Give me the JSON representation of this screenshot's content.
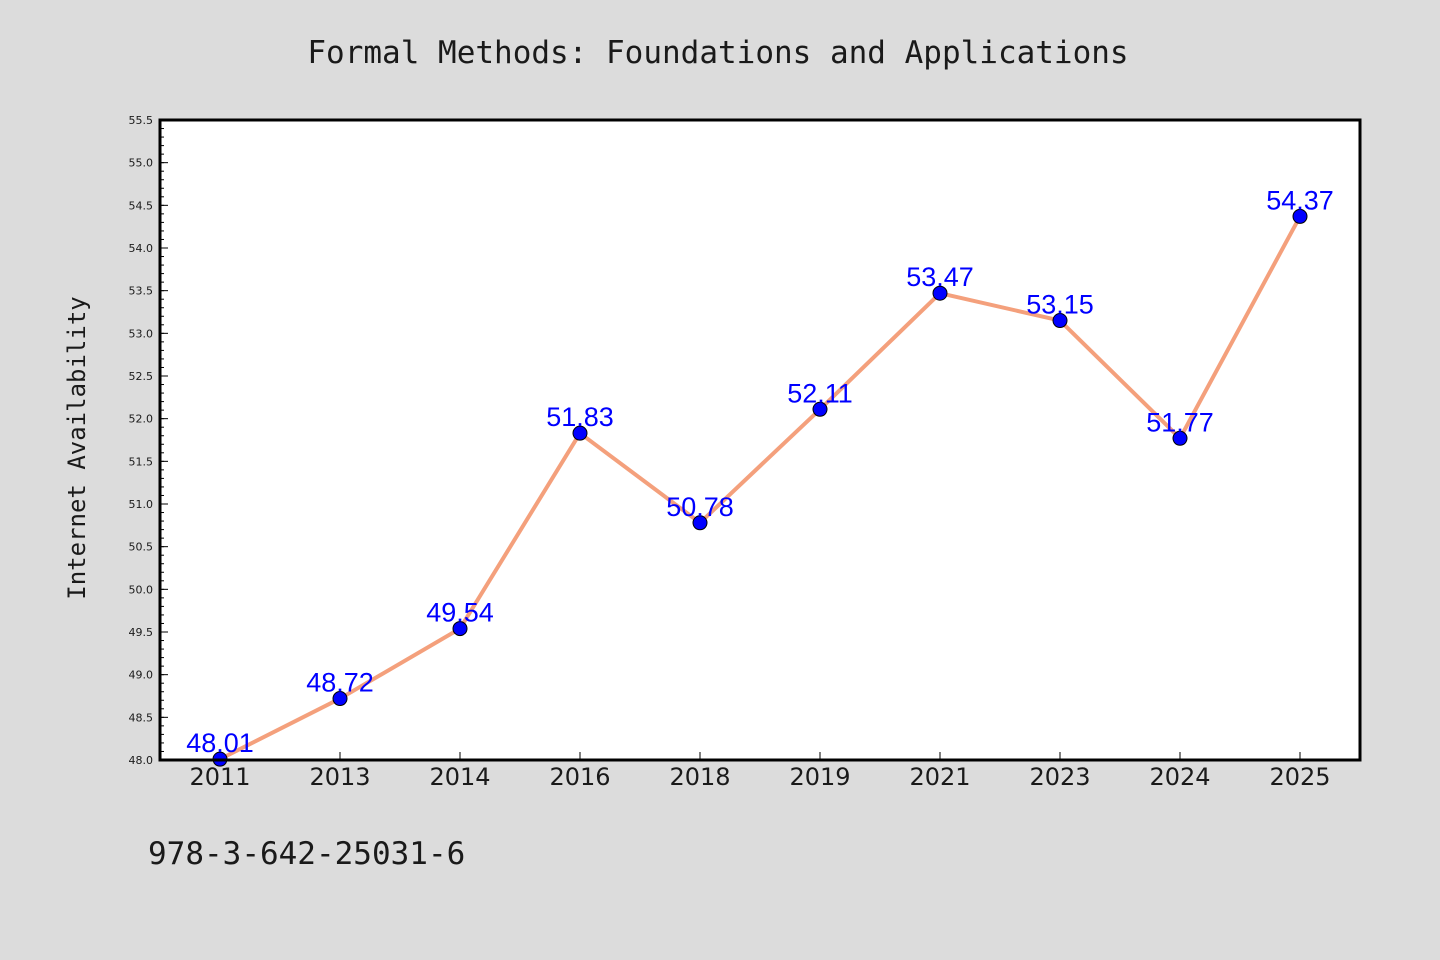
{
  "figure": {
    "isbn": "978-3-642-25031-6"
  },
  "chart_data": {
    "type": "line",
    "title": "Formal Methods: Foundations and Applications",
    "xlabel": "",
    "ylabel": "Internet Availability",
    "categories": [
      "2011",
      "2013",
      "2014",
      "2016",
      "2018",
      "2019",
      "2021",
      "2023",
      "2024",
      "2025"
    ],
    "values": [
      48.01,
      48.72,
      49.54,
      51.83,
      50.78,
      52.11,
      53.47,
      53.15,
      51.77,
      54.37
    ],
    "data_labels": [
      "48.01",
      "48.72",
      "49.54",
      "51.83",
      "50.78",
      "52.11",
      "53.47",
      "53.15",
      "51.77",
      "54.37"
    ],
    "ylim": [
      48.0,
      55.5
    ],
    "yticks": [
      "48.0",
      "48.5",
      "49.0",
      "49.5",
      "50.0",
      "50.5",
      "51.0",
      "51.5",
      "52.0",
      "52.5",
      "53.0",
      "53.5",
      "54.0",
      "54.5",
      "55.0",
      "55.5"
    ],
    "grid": false,
    "legend": "none",
    "colors": {
      "line": "#f4a07c",
      "marker": "#0000ff",
      "label": "#0000ff",
      "background": "#dcdcdc",
      "plot_area": "#ffffff"
    }
  }
}
